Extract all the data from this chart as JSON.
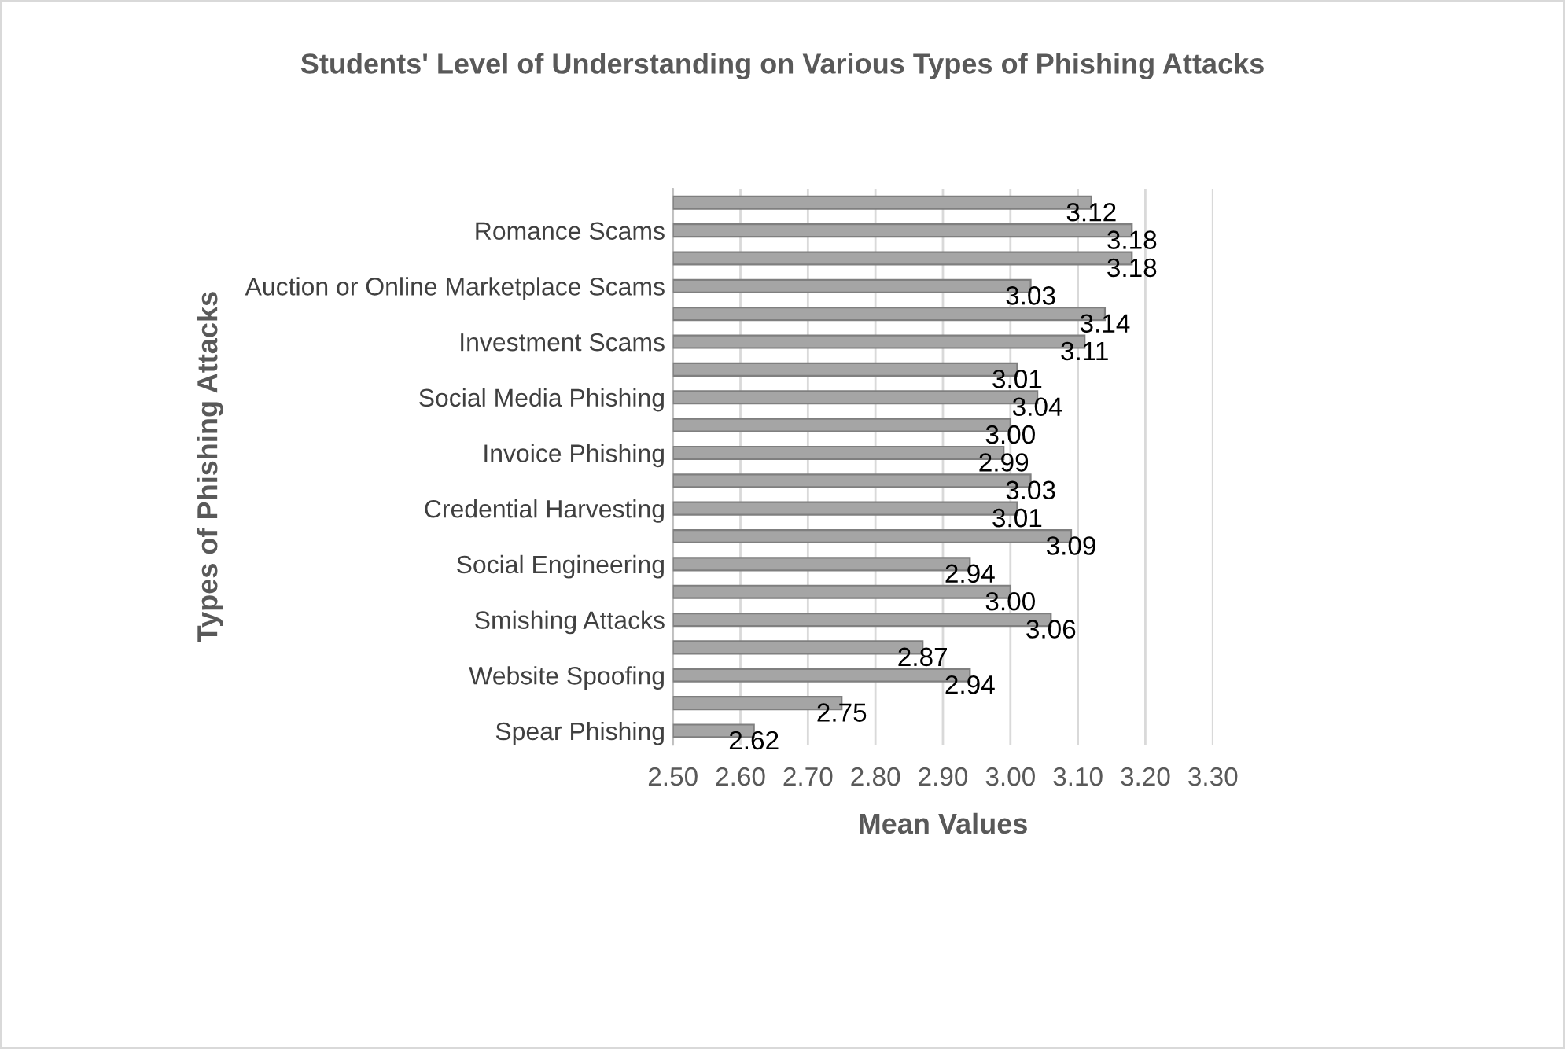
{
  "chart_data": {
    "type": "bar",
    "orientation": "horizontal",
    "title": "Students' Level of Understanding on Various Types of Phishing Attacks",
    "xlabel": "Mean Values",
    "ylabel": "Types of Phishing Attacks",
    "categories": [
      null,
      "Romance Scams",
      null,
      "Auction or Online Marketplace Scams",
      null,
      "Investment Scams",
      null,
      "Social Media Phishing",
      null,
      "Invoice Phishing",
      null,
      "Credential Harvesting",
      null,
      "Social Engineering",
      null,
      "Smishing Attacks",
      null,
      "Website Spoofing",
      null,
      "Spear Phishing"
    ],
    "values": [
      3.12,
      3.18,
      3.18,
      3.03,
      3.14,
      3.11,
      3.01,
      3.04,
      3.0,
      2.99,
      3.03,
      3.01,
      3.09,
      2.94,
      3.0,
      3.06,
      2.87,
      2.94,
      2.75,
      2.62
    ],
    "value_labels": [
      "3.12",
      "3.18",
      "3.18",
      "3.03",
      "3.14",
      "3.11",
      "3.01",
      "3.04",
      "3.00",
      "2.99",
      "3.03",
      "3.01",
      "3.09",
      "2.94",
      "3.00",
      "3.06",
      "2.87",
      "2.94",
      "2.75",
      "2.62"
    ],
    "color": "#a5a5a5",
    "xlim": [
      2.5,
      3.3
    ],
    "xticks": [
      {
        "value": 2.5,
        "label": "2.50"
      },
      {
        "value": 2.6,
        "label": "2.60"
      },
      {
        "value": 2.7,
        "label": "2.70"
      },
      {
        "value": 2.8,
        "label": "2.80"
      },
      {
        "value": 2.9,
        "label": "2.90"
      },
      {
        "value": 3.0,
        "label": "3.00"
      },
      {
        "value": 3.1,
        "label": "3.10"
      },
      {
        "value": 3.2,
        "label": "3.20"
      },
      {
        "value": 3.3,
        "label": "3.30"
      }
    ],
    "grid": "x",
    "legend": false
  }
}
